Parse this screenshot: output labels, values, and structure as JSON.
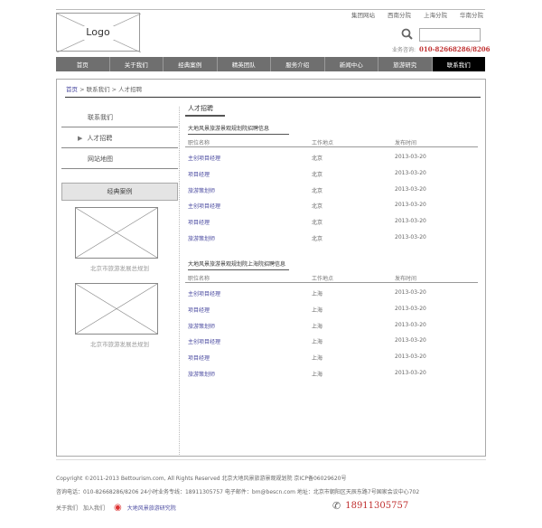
{
  "top_links": [
    "集团网站",
    "西南分院",
    "上海分院",
    "华南分院"
  ],
  "logo": "Logo",
  "search": {
    "placeholder": ""
  },
  "hotline": {
    "label": "业务咨询:",
    "number": "010-82668286/8206"
  },
  "nav": [
    "首页",
    "关于我们",
    "经典案例",
    "精英团队",
    "服务介绍",
    "新闻中心",
    "旅游研究",
    "联系我们"
  ],
  "breadcrumb": {
    "home": "首页",
    "rest": " > 联系我们 > 人才招聘"
  },
  "sidebar": {
    "items": [
      "联系我们",
      "人才招聘",
      "网站地图"
    ],
    "active_marker": "▶",
    "cases_title": "经典案例",
    "case_captions": [
      "北京市旅游发展总规划",
      "北京市旅游发展总规划"
    ]
  },
  "main": {
    "title": "人才招聘",
    "sections": [
      {
        "title": "大地风景旅游景观规划院招聘信息",
        "headers": [
          "职位名称",
          "工作地点",
          "发布时间"
        ],
        "rows": [
          [
            "主创项目经理",
            "北京",
            "2013-03-20"
          ],
          [
            "项目经理",
            "北京",
            "2013-03-20"
          ],
          [
            "旅游策划师",
            "北京",
            "2013-03-20"
          ],
          [
            "主创项目经理",
            "北京",
            "2013-03-20"
          ],
          [
            "项目经理",
            "北京",
            "2013-03-20"
          ],
          [
            "旅游策划师",
            "北京",
            "2013-03-20"
          ]
        ]
      },
      {
        "title": "大地风景旅游景观规划院上海院招聘信息",
        "headers": [
          "职位名称",
          "工作地点",
          "发布时间"
        ],
        "rows": [
          [
            "主创项目经理",
            "上海",
            "2013-03-20"
          ],
          [
            "项目经理",
            "上海",
            "2013-03-20"
          ],
          [
            "旅游策划师",
            "上海",
            "2013-03-20"
          ],
          [
            "主创项目经理",
            "上海",
            "2013-03-20"
          ],
          [
            "项目经理",
            "上海",
            "2013-03-20"
          ],
          [
            "旅游策划师",
            "上海",
            "2013-03-20"
          ]
        ]
      }
    ]
  },
  "footer": {
    "line1": "Copyright ©2011-2013 Bettourism.com, All Rights Reserved    北京大地风景旅游景观规划院   京ICP备06029620号",
    "line2": "咨询电话：010-82668286/8206  24小时业务专线：18911305757  电子邮件：bm@bescn.com  地址：北京市朝阳区天辰东路7号国家会议中心702",
    "links": [
      "关于我们",
      "加入我们"
    ],
    "weibo": "大地风景旅游研究院",
    "phone": "18911305757"
  }
}
